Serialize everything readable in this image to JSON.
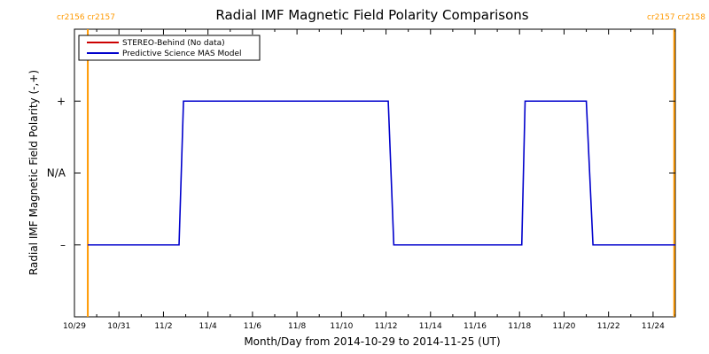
{
  "title": "Radial IMF Magnetic Field Polarity Comparisons",
  "xlabel": "Month/Day from 2014-10-29 to 2014-11-25 (UT)",
  "ylabel": "Radial IMF Magnetic Field Polarity (-,+)",
  "rotation_labels": {
    "left": "cr2156 cr2157",
    "right": "cr2157 cr2158",
    "color": "#ff9900"
  },
  "legend": {
    "items": [
      {
        "label": "STEREO-Behind (No data)",
        "color": "#cc0000"
      },
      {
        "label": "Predictive Science MAS Model",
        "color": "#0000cc"
      }
    ]
  },
  "chart_data": {
    "type": "line",
    "title": "Radial IMF Magnetic Field Polarity Comparisons",
    "xlabel": "Month/Day from 2014-10-29 to 2014-11-25 (UT)",
    "ylabel": "Radial IMF Magnetic Field Polarity (-,+)",
    "x_unit": "days since 2014-10-29 00:00 UT",
    "xlim": [
      0,
      27.0
    ],
    "ylim": [
      -2.0,
      2.0
    ],
    "x_ticks": [
      {
        "x": 0,
        "label": "10/29"
      },
      {
        "x": 2,
        "label": "10/31"
      },
      {
        "x": 4,
        "label": "11/2"
      },
      {
        "x": 6,
        "label": "11/4"
      },
      {
        "x": 8,
        "label": "11/6"
      },
      {
        "x": 10,
        "label": "11/8"
      },
      {
        "x": 12,
        "label": "11/10"
      },
      {
        "x": 14,
        "label": "11/12"
      },
      {
        "x": 16,
        "label": "11/14"
      },
      {
        "x": 18,
        "label": "11/16"
      },
      {
        "x": 20,
        "label": "11/18"
      },
      {
        "x": 22,
        "label": "11/20"
      },
      {
        "x": 24,
        "label": "11/22"
      },
      {
        "x": 26,
        "label": "11/24"
      }
    ],
    "y_ticks": [
      {
        "y": 1,
        "label": "+"
      },
      {
        "y": 0,
        "label": "N/A"
      },
      {
        "y": -1,
        "label": "–"
      }
    ],
    "vertical_markers": [
      {
        "x": 0.6,
        "color": "#ff9900"
      },
      {
        "x": 26.95,
        "color": "#ff9900"
      }
    ],
    "series": [
      {
        "name": "Predictive Science MAS Model",
        "color": "#0000cc",
        "x": [
          0.6,
          4.7,
          4.9,
          14.1,
          14.35,
          20.1,
          20.25,
          23.0,
          23.3,
          27.0
        ],
        "y": [
          -1,
          -1,
          1,
          1,
          -1,
          -1,
          1,
          1,
          -1,
          -1
        ]
      },
      {
        "name": "STEREO-Behind (No data)",
        "color": "#cc0000",
        "x": [],
        "y": []
      }
    ]
  }
}
